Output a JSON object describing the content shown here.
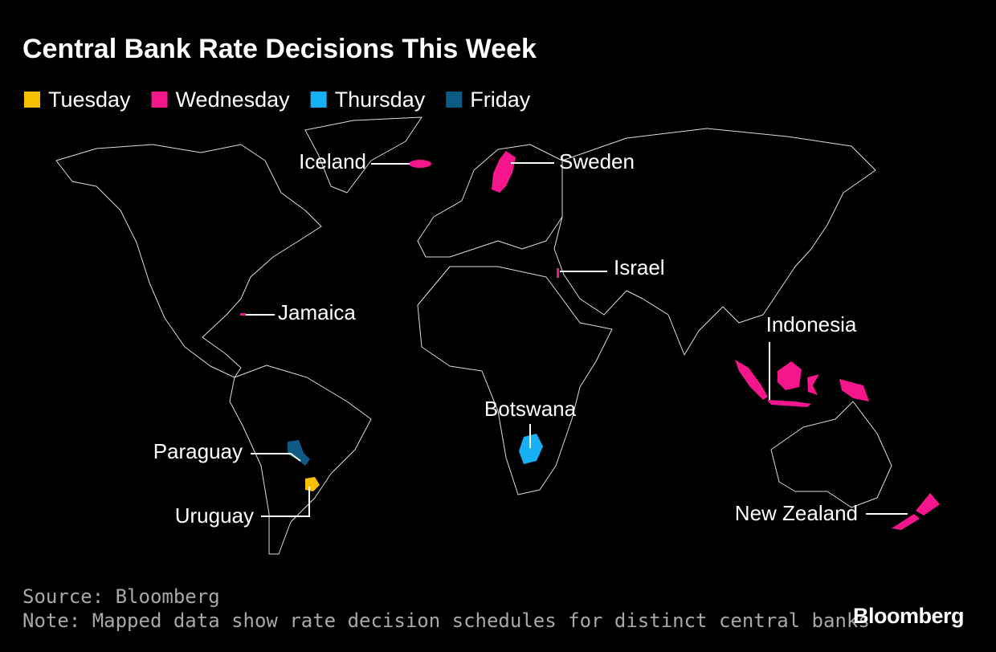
{
  "title": "Central Bank Rate Decisions This Week",
  "legend": [
    {
      "label": "Tuesday",
      "color": "#f7c100"
    },
    {
      "label": "Wednesday",
      "color": "#f5168e"
    },
    {
      "label": "Thursday",
      "color": "#18b0f5"
    },
    {
      "label": "Friday",
      "color": "#0d5a82"
    }
  ],
  "countries": [
    {
      "name": "Iceland",
      "color": "#f5168e"
    },
    {
      "name": "Sweden",
      "color": "#f5168e"
    },
    {
      "name": "Israel",
      "color": "#f5168e"
    },
    {
      "name": "Jamaica",
      "color": "#f5168e"
    },
    {
      "name": "Indonesia",
      "color": "#f5168e"
    },
    {
      "name": "Botswana",
      "color": "#18b0f5"
    },
    {
      "name": "Paraguay",
      "color": "#0d5a82"
    },
    {
      "name": "Uruguay",
      "color": "#f7c100"
    },
    {
      "name": "New Zealand",
      "color": "#f5168e"
    }
  ],
  "source": "Source: Bloomberg",
  "note": "Note: Mapped data show rate decision schedules for distinct central banks",
  "logo": "Bloomberg"
}
